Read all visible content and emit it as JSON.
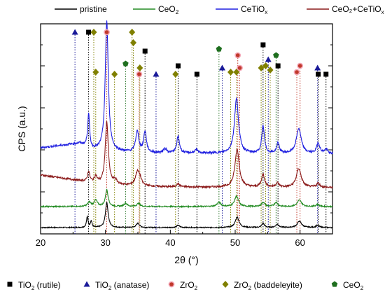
{
  "chart_data": {
    "type": "line",
    "title": "",
    "xlabel": "2θ (°)",
    "ylabel": "CPS (a.u.)",
    "xlim": [
      20,
      65
    ],
    "ylim": [
      0,
      100
    ],
    "y_ticks_labeled": false,
    "x_ticks": [
      20,
      30,
      40,
      50,
      60
    ],
    "series_legend": [
      {
        "key": "pristine",
        "label": "pristine",
        "sub": "",
        "color": "#000000"
      },
      {
        "key": "ceo2",
        "label": "CeO",
        "sub": "2",
        "color": "#228b22"
      },
      {
        "key": "cetiox",
        "label": "CeTiO",
        "sub": "x",
        "color": "#1f1fe0"
      },
      {
        "key": "mix",
        "label": "CeO₂+CeTiO",
        "sub": "x",
        "color": "#8b1a1a"
      }
    ],
    "series": [
      {
        "key": "pristine",
        "color": "#000000",
        "baseline": 3,
        "noise": 0.25,
        "peaks": [
          [
            27.2,
            5,
            0.15
          ],
          [
            27.8,
            3,
            0.15
          ],
          [
            30.2,
            12,
            0.25
          ],
          [
            35.0,
            2,
            0.3
          ],
          [
            41.2,
            1,
            0.3
          ],
          [
            50.3,
            5,
            0.35
          ],
          [
            54.3,
            2,
            0.25
          ],
          [
            56.5,
            1.5,
            0.3
          ],
          [
            59.9,
            3,
            0.4
          ],
          [
            62.7,
            1,
            0.3
          ]
        ]
      },
      {
        "key": "ceo2",
        "color": "#228b22",
        "baseline": 13,
        "noise": 0.3,
        "peaks": [
          [
            27.5,
            2,
            0.3
          ],
          [
            28.5,
            3,
            0.3
          ],
          [
            30.2,
            8,
            0.25
          ],
          [
            33.1,
            1.5,
            0.3
          ],
          [
            35.1,
            1.5,
            0.3
          ],
          [
            47.5,
            2,
            0.35
          ],
          [
            50.2,
            5,
            0.35
          ],
          [
            54.3,
            2,
            0.3
          ],
          [
            56.3,
            2,
            0.3
          ],
          [
            59.9,
            3,
            0.4
          ],
          [
            62.7,
            1,
            0.3
          ]
        ]
      },
      {
        "key": "mix",
        "color": "#8b1a1a",
        "baseline": 22,
        "noise": 0.45,
        "slope": [
          [
            20,
            6
          ],
          [
            30,
            1.5
          ],
          [
            40,
            0.3
          ],
          [
            65,
            0
          ]
        ],
        "peaks": [
          [
            27.4,
            5,
            0.2
          ],
          [
            28.5,
            3,
            0.25
          ],
          [
            30.2,
            30,
            0.28
          ],
          [
            31.5,
            2,
            0.3
          ],
          [
            34.9,
            6,
            0.35
          ],
          [
            35.3,
            3,
            0.3
          ],
          [
            41.2,
            1.5,
            0.3
          ],
          [
            50.3,
            18,
            0.4
          ],
          [
            54.3,
            6,
            0.3
          ],
          [
            56.5,
            2,
            0.3
          ],
          [
            59.8,
            9,
            0.45
          ],
          [
            62.8,
            2,
            0.3
          ]
        ]
      },
      {
        "key": "cetiox",
        "color": "#1f1fe0",
        "baseline": 38,
        "noise": 0.5,
        "slope": [
          [
            20,
            3
          ],
          [
            26,
            5
          ],
          [
            28,
            2
          ],
          [
            35,
            0.5
          ],
          [
            65,
            0
          ]
        ],
        "peaks": [
          [
            27.4,
            16,
            0.18
          ],
          [
            30.2,
            62,
            0.28
          ],
          [
            34.9,
            10,
            0.3
          ],
          [
            36.1,
            10,
            0.25
          ],
          [
            39.2,
            2,
            0.3
          ],
          [
            41.2,
            8,
            0.25
          ],
          [
            44.0,
            1.5,
            0.3
          ],
          [
            50.2,
            26,
            0.38
          ],
          [
            54.3,
            13,
            0.25
          ],
          [
            56.6,
            5,
            0.25
          ],
          [
            59.8,
            12,
            0.45
          ],
          [
            62.8,
            5,
            0.3
          ],
          [
            64.0,
            2,
            0.3
          ]
        ]
      }
    ],
    "reference_legend": [
      {
        "key": "rutile",
        "label": "TiO",
        "sub": "2",
        "suffix": " (rutile)",
        "marker": "square",
        "color": "#000000"
      },
      {
        "key": "anatase",
        "label": "TiO",
        "sub": "2",
        "suffix": " (anatase)",
        "marker": "triangle",
        "color": "#1a1a99"
      },
      {
        "key": "zro2",
        "label": "ZrO",
        "sub": "2",
        "suffix": "",
        "marker": "circle",
        "color": "#c0392b"
      },
      {
        "key": "baddeleyite",
        "label": "ZrO",
        "sub": "2",
        "suffix": " (baddeleyite)",
        "marker": "diamond",
        "color": "#808000"
      },
      {
        "key": "ceo2ref",
        "label": "CeO",
        "sub": "2",
        "suffix": "",
        "marker": "pentagon",
        "color": "#1e6e1e"
      }
    ],
    "reference_markers": [
      {
        "key": "anatase",
        "x": 25.3,
        "y": 100
      },
      {
        "key": "rutile",
        "x": 27.4,
        "y": 100
      },
      {
        "key": "baddeleyite",
        "x": 28.2,
        "y": 100
      },
      {
        "key": "baddeleyite",
        "x": 28.5,
        "y": 77
      },
      {
        "key": "zro2",
        "x": 30.2,
        "y": 100
      },
      {
        "key": "baddeleyite",
        "x": 31.4,
        "y": 76
      },
      {
        "key": "ceo2ref",
        "x": 33.1,
        "y": 81
      },
      {
        "key": "baddeleyite",
        "x": 34.1,
        "y": 100
      },
      {
        "key": "baddeleyite",
        "x": 34.3,
        "y": 91
      },
      {
        "key": "baddeleyite",
        "x": 35.3,
        "y": 79
      },
      {
        "key": "zro2",
        "x": 35.2,
        "y": 76
      },
      {
        "key": "rutile",
        "x": 36.1,
        "y": 87
      },
      {
        "key": "anatase",
        "x": 37.8,
        "y": 76
      },
      {
        "key": "baddeleyite",
        "x": 40.8,
        "y": 76
      },
      {
        "key": "rutile",
        "x": 41.2,
        "y": 80
      },
      {
        "key": "rutile",
        "x": 44.1,
        "y": 76
      },
      {
        "key": "ceo2ref",
        "x": 47.5,
        "y": 88
      },
      {
        "key": "anatase",
        "x": 48.0,
        "y": 79
      },
      {
        "key": "baddeleyite",
        "x": 49.3,
        "y": 77
      },
      {
        "key": "baddeleyite",
        "x": 50.2,
        "y": 77
      },
      {
        "key": "zro2",
        "x": 50.4,
        "y": 85
      },
      {
        "key": "zro2",
        "x": 50.7,
        "y": 79
      },
      {
        "key": "baddeleyite",
        "x": 54.0,
        "y": 79
      },
      {
        "key": "rutile",
        "x": 54.3,
        "y": 90
      },
      {
        "key": "baddeleyite",
        "x": 54.7,
        "y": 80
      },
      {
        "key": "anatase",
        "x": 55.1,
        "y": 83
      },
      {
        "key": "baddeleyite",
        "x": 55.4,
        "y": 78
      },
      {
        "key": "ceo2ref",
        "x": 56.3,
        "y": 85
      },
      {
        "key": "rutile",
        "x": 56.6,
        "y": 80
      },
      {
        "key": "zro2",
        "x": 59.5,
        "y": 77
      },
      {
        "key": "zro2",
        "x": 60.0,
        "y": 80
      },
      {
        "key": "anatase",
        "x": 62.7,
        "y": 79
      },
      {
        "key": "rutile",
        "x": 62.8,
        "y": 76
      },
      {
        "key": "rutile",
        "x": 64.0,
        "y": 76
      }
    ]
  }
}
